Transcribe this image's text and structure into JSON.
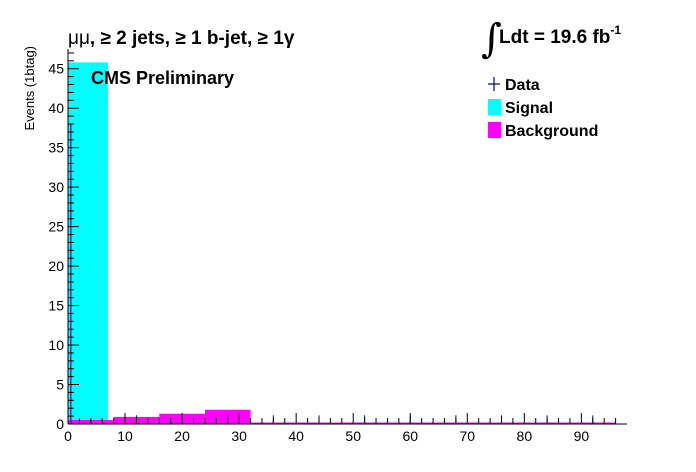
{
  "chart_data": {
    "type": "bar",
    "title": "μμ, ≥ 2 jets, ≥ 1 b-jet, ≥ 1γ",
    "title_parts": {
      "channel": "μμ",
      "jets": ", ≥ 2 jets,",
      "bjet": " ≥ 1 b-jet,",
      "photon": " ≥ 1γ"
    },
    "luminosity": {
      "integral_symbol": "∫",
      "text": "Ldt = 19.6 fb",
      "exponent": "-1"
    },
    "annotation": "CMS Preliminary",
    "xlabel": "",
    "ylabel": "Events (1btag)",
    "xlim": [
      0,
      98
    ],
    "ylim": [
      0,
      47.5
    ],
    "x_ticks": [
      "0",
      "10",
      "20",
      "30",
      "40",
      "50",
      "60",
      "70",
      "80",
      "90"
    ],
    "y_ticks": [
      "0",
      "5",
      "10",
      "15",
      "20",
      "25",
      "30",
      "35",
      "40",
      "45"
    ],
    "grid": false,
    "legend_position": "top-right",
    "bin_width": 8,
    "series": [
      {
        "name": "Signal",
        "color": "#00ffff",
        "bins": [
          {
            "x0": 0,
            "x1": 7,
            "value": 45.8
          }
        ]
      },
      {
        "name": "Background",
        "color": "#ff00ff",
        "bins": [
          {
            "x0": 0,
            "x1": 8,
            "value": 0.5
          },
          {
            "x0": 8,
            "x1": 16,
            "value": 0.9
          },
          {
            "x0": 16,
            "x1": 24,
            "value": 1.3
          },
          {
            "x0": 24,
            "x1": 32,
            "value": 1.8
          },
          {
            "x0": 32,
            "x1": 40,
            "value": 0.1
          },
          {
            "x0": 40,
            "x1": 48,
            "value": 0.1
          },
          {
            "x0": 48,
            "x1": 56,
            "value": 0.05
          },
          {
            "x0": 56,
            "x1": 64,
            "value": 0.05
          },
          {
            "x0": 64,
            "x1": 72,
            "value": 0.05
          },
          {
            "x0": 72,
            "x1": 80,
            "value": 0.05
          },
          {
            "x0": 80,
            "x1": 88,
            "value": 0.05
          },
          {
            "x0": 88,
            "x1": 96,
            "value": 0.05
          }
        ]
      },
      {
        "name": "Data",
        "color": "#000080",
        "points": [
          {
            "x": 0.5,
            "y": 0,
            "err_hi": 38
          },
          {
            "x": 12,
            "y": 0,
            "err_hi": 1.1
          },
          {
            "x": 20,
            "y": 0,
            "err_hi": 1.1
          },
          {
            "x": 28,
            "y": 0,
            "err_hi": 1.1
          },
          {
            "x": 36,
            "y": 0,
            "err_hi": 1.1
          },
          {
            "x": 44,
            "y": 0,
            "err_hi": 1.1
          },
          {
            "x": 52,
            "y": 0,
            "err_hi": 1.1
          },
          {
            "x": 60,
            "y": 0,
            "err_hi": 1.1
          },
          {
            "x": 68,
            "y": 0,
            "err_hi": 1.1
          },
          {
            "x": 76,
            "y": 0,
            "err_hi": 1.1
          },
          {
            "x": 84,
            "y": 0,
            "err_hi": 1.1
          },
          {
            "x": 92,
            "y": 0,
            "err_hi": 1.1
          }
        ]
      }
    ],
    "legend": [
      {
        "label": "Data",
        "marker": "cross",
        "color": "#000080"
      },
      {
        "label": "Signal",
        "marker": "box",
        "color": "#00ffff"
      },
      {
        "label": "Background",
        "marker": "box",
        "color": "#ff00ff"
      }
    ]
  }
}
